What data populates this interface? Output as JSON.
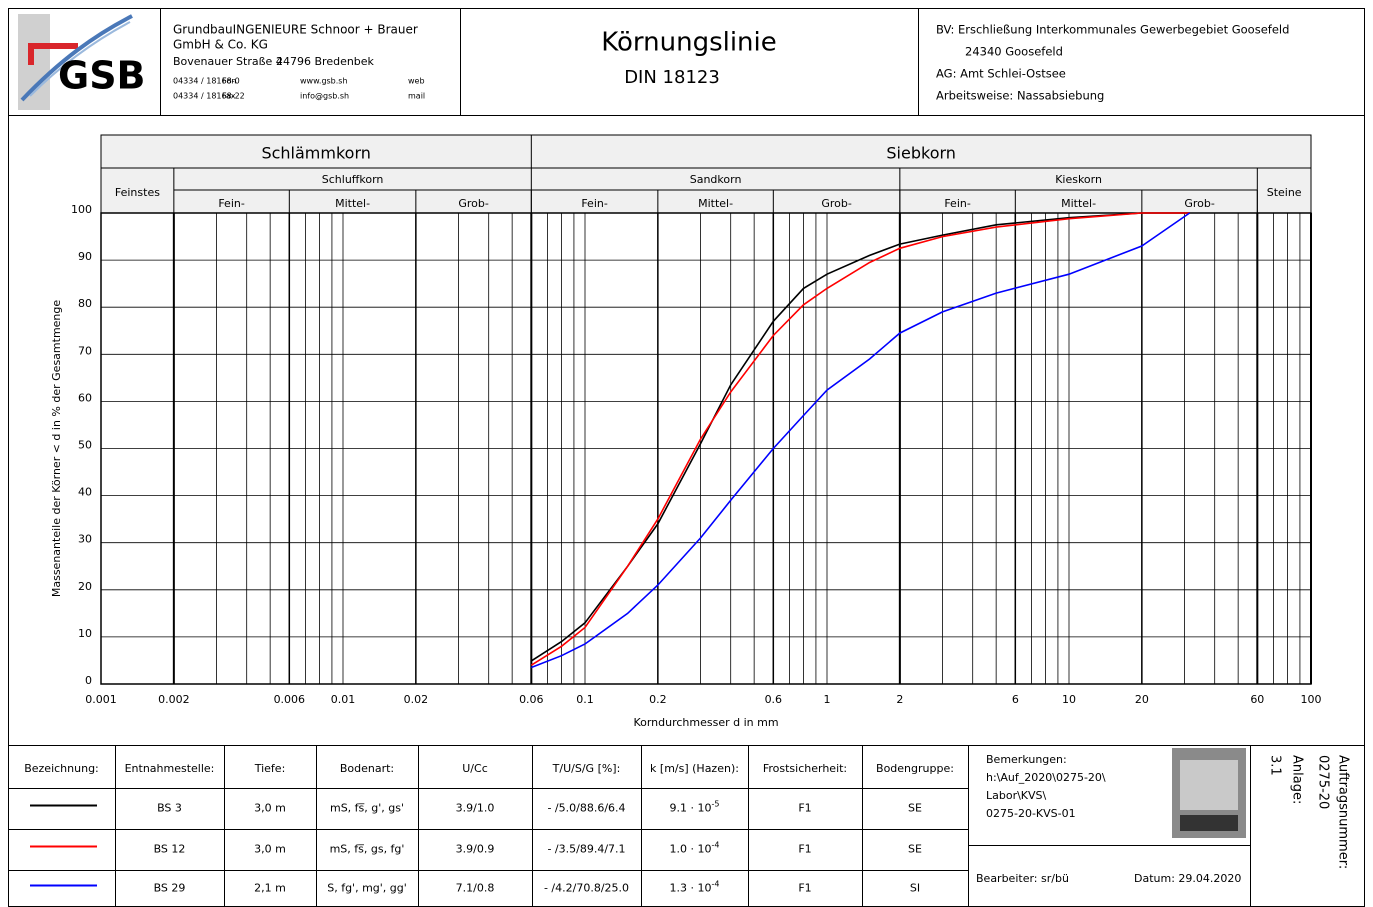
{
  "header": {
    "logo": "GSB",
    "company": [
      "GrundbauINGENIEURE  Schnoor + Brauer",
      "GmbH & Co. KG"
    ],
    "address": [
      "Bovenauer Straße 4",
      "24796 Bredenbek"
    ],
    "contacts": [
      [
        "04334 / 18168-0",
        "Fon",
        "www.gsb.sh",
        "web"
      ],
      [
        "04334 / 18168-22",
        "Fax",
        "info@gsb.sh",
        "mail"
      ]
    ],
    "title": "Körnungslinie",
    "subtitle": "DIN 18123",
    "project": [
      "BV:  Erschließung Interkommunales Gewerbegebiet Goosefeld",
      "24340 Goosefeld",
      "AG:  Amt Schlei-Ostsee",
      "Arbeitsweise:  Nassabsiebung"
    ]
  },
  "chart_data": {
    "type": "line",
    "x_label": "Korndurchmesser d in mm",
    "y_label": "Massenanteile der Körner < d in % der Gesamtmenge",
    "log_x": true,
    "grid": true,
    "xlim": [
      0.001,
      100
    ],
    "ylim": [
      0,
      100
    ],
    "xticks": [
      0.001,
      0.002,
      0.006,
      0.01,
      0.02,
      0.06,
      0.1,
      0.2,
      0.6,
      1,
      2,
      6,
      10,
      20,
      60,
      100
    ],
    "yticks": [
      0,
      10,
      20,
      30,
      40,
      50,
      60,
      70,
      80,
      90,
      100
    ],
    "xgrid": [
      0.003,
      0.004,
      0.005,
      0.007,
      0.008,
      0.009,
      0.03,
      0.04,
      0.05,
      0.07,
      0.08,
      0.09,
      0.3,
      0.4,
      0.5,
      0.7,
      0.8,
      0.9,
      3,
      4,
      5,
      7,
      8,
      9,
      30,
      40,
      50,
      70,
      80,
      90
    ],
    "bands": {
      "groups": [
        {
          "label": "Schlämmkorn",
          "from": 0.001,
          "to": 0.06
        },
        {
          "label": "Siebkorn",
          "from": 0.06,
          "to": 100
        }
      ],
      "fractions": [
        {
          "label": "Feinstes",
          "from": 0.001,
          "to": 0.002,
          "parts": []
        },
        {
          "label": "Schluffkorn",
          "from": 0.002,
          "to": 0.06,
          "parts": [
            {
              "label": "Fein-",
              "from": 0.002,
              "to": 0.006
            },
            {
              "label": "Mittel-",
              "from": 0.006,
              "to": 0.02
            },
            {
              "label": "Grob-",
              "from": 0.02,
              "to": 0.06
            }
          ]
        },
        {
          "label": "Sandkorn",
          "from": 0.06,
          "to": 2,
          "parts": [
            {
              "label": "Fein-",
              "from": 0.06,
              "to": 0.2
            },
            {
              "label": "Mittel-",
              "from": 0.2,
              "to": 0.6
            },
            {
              "label": "Grob-",
              "from": 0.6,
              "to": 2
            }
          ]
        },
        {
          "label": "Kieskorn",
          "from": 2,
          "to": 60,
          "parts": [
            {
              "label": "Fein-",
              "from": 2,
              "to": 6
            },
            {
              "label": "Mittel-",
              "from": 6,
              "to": 20
            },
            {
              "label": "Grob-",
              "from": 20,
              "to": 60
            }
          ]
        },
        {
          "label": "Steine",
          "from": 60,
          "to": 100,
          "parts": []
        }
      ]
    },
    "x": [
      0.06,
      0.08,
      0.1,
      0.15,
      0.2,
      0.3,
      0.4,
      0.6,
      0.8,
      1,
      1.5,
      2,
      3,
      5,
      10,
      20,
      31.5
    ],
    "series": [
      {
        "name": "BS 3",
        "color": "#000000",
        "values": [
          4.9,
          9,
          13,
          25,
          34,
          51,
          63.5,
          77,
          84,
          87,
          91,
          93.4,
          95.3,
          97.5,
          99,
          100,
          100
        ]
      },
      {
        "name": "BS 12",
        "color": "#ff0000",
        "values": [
          4,
          8,
          12,
          25,
          35,
          52,
          62,
          74,
          80.5,
          84,
          89.5,
          92.5,
          95,
          97,
          98.8,
          100,
          100
        ]
      },
      {
        "name": "BS 29",
        "color": "#0000ff",
        "values": [
          3.5,
          6,
          8.5,
          15,
          21,
          31,
          39,
          50,
          57,
          62.4,
          69,
          74.5,
          79,
          83,
          87,
          93,
          100
        ]
      }
    ]
  },
  "table": {
    "columns": [
      "Bezeichnung:",
      "Entnahmestelle:",
      "Tiefe:",
      "Bodenart:",
      "U/Cc",
      "T/U/S/G [%]:",
      "k [m/s] (Hazen):",
      "Frostsicherheit:",
      "Bodengruppe:"
    ],
    "rows": [
      {
        "depth": "3,0 m",
        "soil": "mS, fs̅, g', gs'",
        "u_cc": "3.9/1.0",
        "tusg": "- /5.0/88.6/6.4",
        "k": {
          "base": "9.1 · 10",
          "exponent": "-5"
        },
        "frost": "F1",
        "group": "SE"
      },
      {
        "depth": "3,0 m",
        "soil": "mS, fs̅, gs, fg'",
        "u_cc": "3.9/0.9",
        "tusg": "- /3.5/89.4/7.1",
        "k": {
          "base": "1.0 · 10",
          "exponent": "-4"
        },
        "frost": "F1",
        "group": "SE"
      },
      {
        "depth": "2,1 m",
        "soil": "S, fg', mg', gg'",
        "u_cc": "7.1/0.8",
        "tusg": "- /4.2/70.8/25.0",
        "k": {
          "base": "1.3 · 10",
          "exponent": "-4"
        },
        "frost": "F1",
        "group": "SI"
      }
    ]
  },
  "notes": {
    "label": "Bemerkungen:",
    "lines": [
      "h:\\Auf_2020\\0275-20\\",
      "Labor\\KVS\\",
      "0275-20-KVS-01"
    ],
    "editor": "Bearbeiter:  sr/bü",
    "date": "Datum:  29.04.2020",
    "order_label": "Auftragsnummer:",
    "order": "0275-20",
    "annex_label": "Anlage:",
    "annex": "3.1"
  }
}
